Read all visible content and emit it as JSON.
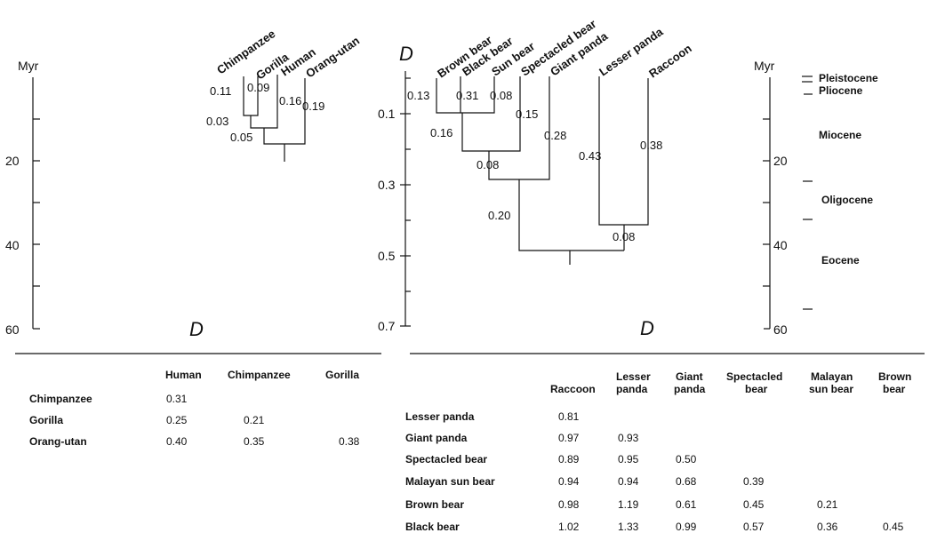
{
  "primate_tree": {
    "axis_unit": "Myr",
    "axis_ticks": [
      "20",
      "40",
      "60"
    ],
    "leaves": [
      "Chimpanzee",
      "Gorilla",
      "Human",
      "Orang-utan"
    ],
    "branch_lengths": [
      "0.11",
      "0.09",
      "0.16",
      "0.19",
      "0.03",
      "0.05"
    ],
    "d_label": "D"
  },
  "carnivore_tree": {
    "axis_label": "D",
    "axis_ticks": [
      "0.1",
      "0.3",
      "0.5",
      "0.7"
    ],
    "leaves": [
      "Brown bear",
      "Black bear",
      "Sun bear",
      "Spectacled bear",
      "Giant panda",
      "Lesser panda",
      "Raccoon"
    ],
    "branch_lengths": [
      "0.13",
      "0.31",
      "0.08",
      "0.15",
      "0.16",
      "0.28",
      "0.08",
      "0.20",
      "0.43",
      "0.38",
      "0.08"
    ],
    "d_label": "D"
  },
  "time_scale": {
    "axis_unit": "Myr",
    "axis_ticks": [
      "20",
      "40",
      "60"
    ],
    "epochs": [
      "Pleistocene",
      "Pliocene",
      "Miocene",
      "Oligocene",
      "Eocene"
    ]
  },
  "primate_table": {
    "columns": [
      "Human",
      "Chimpanzee",
      "Gorilla"
    ],
    "rows": [
      {
        "name": "Chimpanzee",
        "values": [
          "0.31",
          "",
          ""
        ]
      },
      {
        "name": "Gorilla",
        "values": [
          "0.25",
          "0.21",
          ""
        ]
      },
      {
        "name": "Orang-utan",
        "values": [
          "0.40",
          "0.35",
          "0.38"
        ]
      }
    ]
  },
  "carnivore_table": {
    "columns": [
      {
        "l1": "",
        "l2": "Raccoon"
      },
      {
        "l1": "Lesser",
        "l2": "panda"
      },
      {
        "l1": "Giant",
        "l2": "panda"
      },
      {
        "l1": "Spectacled",
        "l2": "bear"
      },
      {
        "l1": "Malayan",
        "l2": "sun bear"
      },
      {
        "l1": "Brown",
        "l2": "bear"
      }
    ],
    "rows": [
      {
        "name": "Lesser panda",
        "values": [
          "0.81",
          "",
          "",
          "",
          "",
          ""
        ]
      },
      {
        "name": "Giant panda",
        "values": [
          "0.97",
          "0.93",
          "",
          "",
          "",
          ""
        ]
      },
      {
        "name": "Spectacled bear",
        "values": [
          "0.89",
          "0.95",
          "0.50",
          "",
          "",
          ""
        ]
      },
      {
        "name": "Malayan sun bear",
        "values": [
          "0.94",
          "0.94",
          "0.68",
          "0.39",
          "",
          ""
        ]
      },
      {
        "name": "Brown bear",
        "values": [
          "0.98",
          "1.19",
          "0.61",
          "0.45",
          "0.21",
          ""
        ]
      },
      {
        "name": "Black bear",
        "values": [
          "1.02",
          "1.33",
          "0.99",
          "0.57",
          "0.36",
          "0.45"
        ]
      }
    ]
  }
}
